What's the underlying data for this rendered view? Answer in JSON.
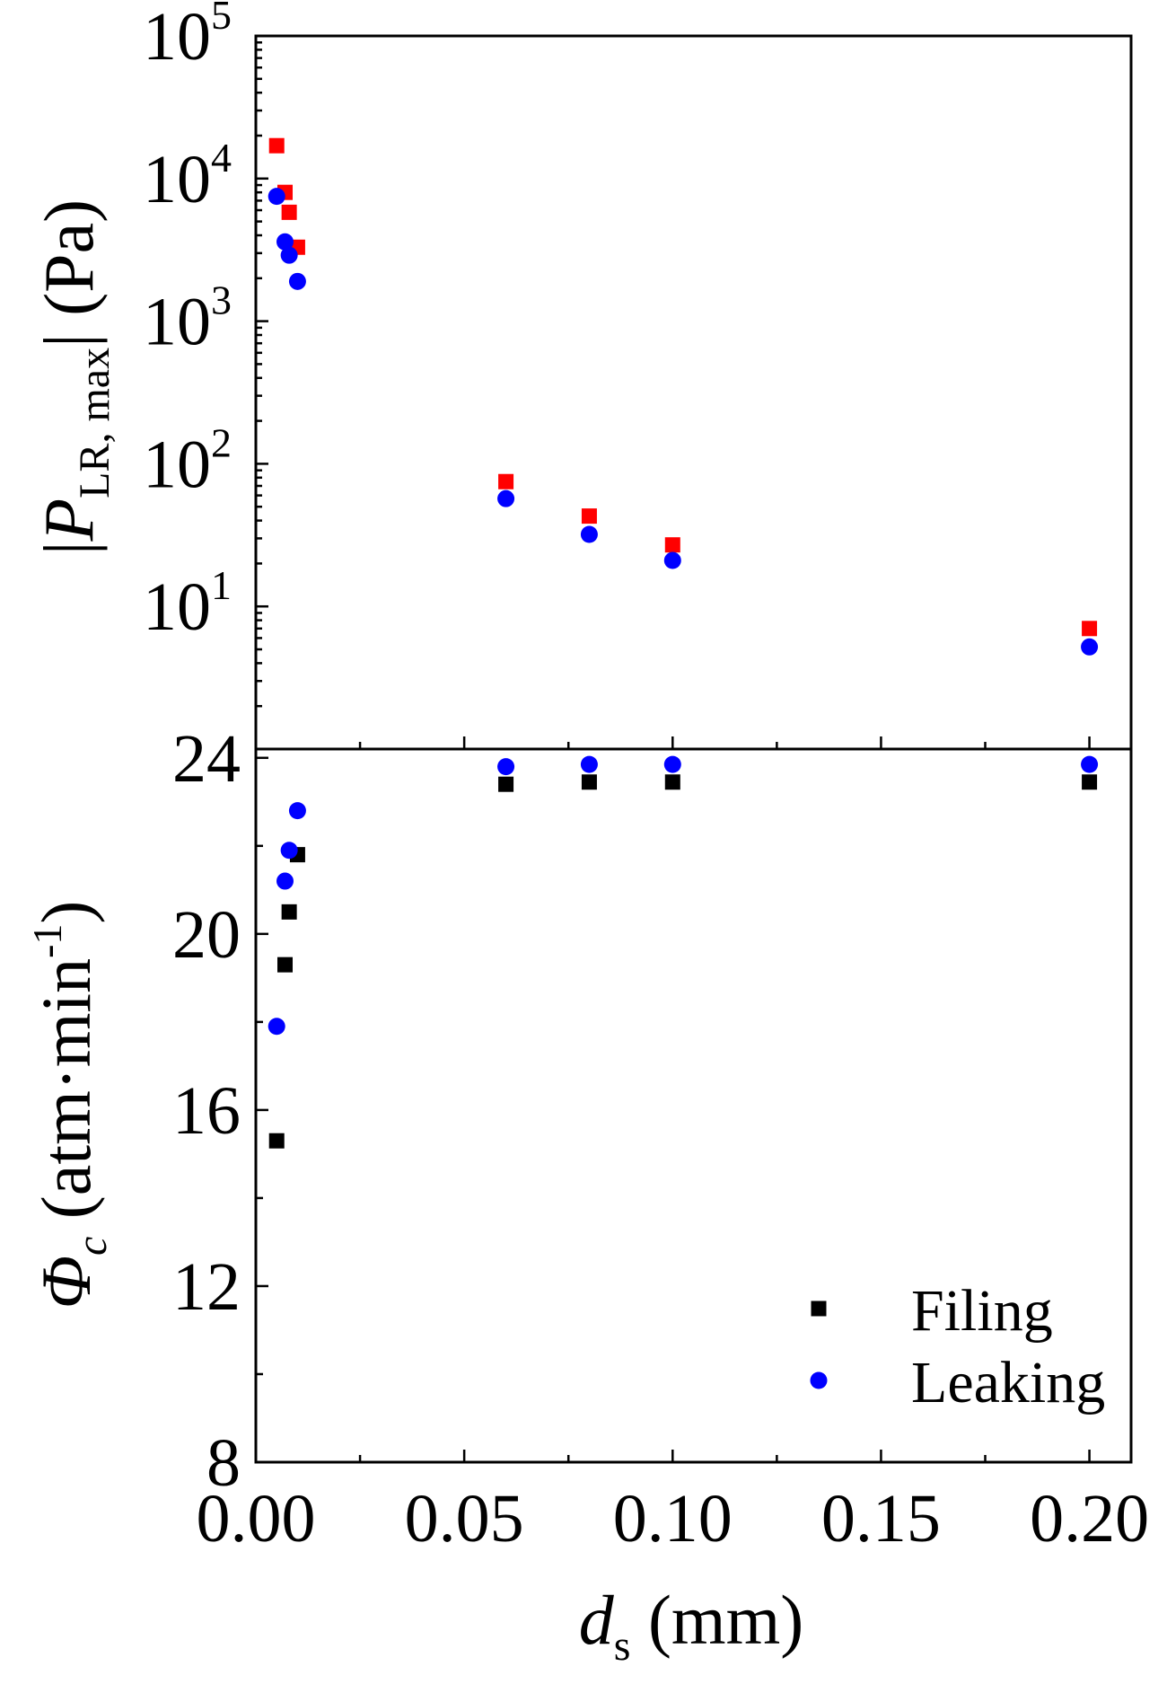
{
  "chart_data": [
    {
      "type": "scatter",
      "panel": "top",
      "scale": "log",
      "ylim": [
        1,
        100000
      ],
      "ylabel": {
        "prefix": "|",
        "symbol": "P",
        "subscript": "LR, max",
        "suffix": "| (Pa)"
      },
      "yticks": [
        {
          "value": 10,
          "base": "10",
          "exp": "1"
        },
        {
          "value": 100,
          "base": "10",
          "exp": "2"
        },
        {
          "value": 1000,
          "base": "10",
          "exp": "3"
        },
        {
          "value": 10000,
          "base": "10",
          "exp": "4"
        },
        {
          "value": 100000,
          "base": "10",
          "exp": "5"
        }
      ],
      "series": [
        {
          "marker": "square",
          "color": "#ff0000",
          "x": [
            0.005,
            0.007,
            0.008,
            0.01,
            0.06,
            0.08,
            0.1,
            0.2
          ],
          "y": [
            17000,
            8000,
            5800,
            3300,
            75,
            43,
            27,
            7
          ]
        },
        {
          "marker": "circle",
          "color": "#0000ff",
          "x": [
            0.005,
            0.007,
            0.008,
            0.01,
            0.06,
            0.08,
            0.1,
            0.2
          ],
          "y": [
            7500,
            3600,
            2900,
            1900,
            57,
            32,
            21,
            5.2
          ]
        }
      ]
    },
    {
      "type": "scatter",
      "panel": "bottom",
      "ylim": [
        8,
        24.2
      ],
      "yticks": [
        8,
        12,
        16,
        20,
        24
      ],
      "ylabel": {
        "symbol": "Φ",
        "subscript": "c",
        "text": " (atm·min",
        "superscript": "-1",
        "suffix": ")"
      },
      "xlabel": {
        "symbol": "d",
        "subscript": "s",
        "suffix": " (mm)"
      },
      "xlim": [
        0,
        0.21
      ],
      "xticks": [
        "0.00",
        "0.05",
        "0.10",
        "0.15",
        "0.20"
      ],
      "legend_position": "bottom-right",
      "series": [
        {
          "name": "Filing",
          "marker": "square",
          "color": "#000000",
          "x": [
            0.005,
            0.007,
            0.008,
            0.01,
            0.06,
            0.08,
            0.1,
            0.2
          ],
          "y": [
            15.3,
            19.3,
            20.5,
            21.8,
            23.4,
            23.45,
            23.45,
            23.45
          ]
        },
        {
          "name": "Leaking",
          "marker": "circle",
          "color": "#0000ff",
          "x": [
            0.005,
            0.007,
            0.008,
            0.01,
            0.06,
            0.08,
            0.1,
            0.2
          ],
          "y": [
            17.9,
            21.2,
            21.9,
            22.8,
            23.8,
            23.85,
            23.85,
            23.85
          ]
        }
      ]
    }
  ]
}
